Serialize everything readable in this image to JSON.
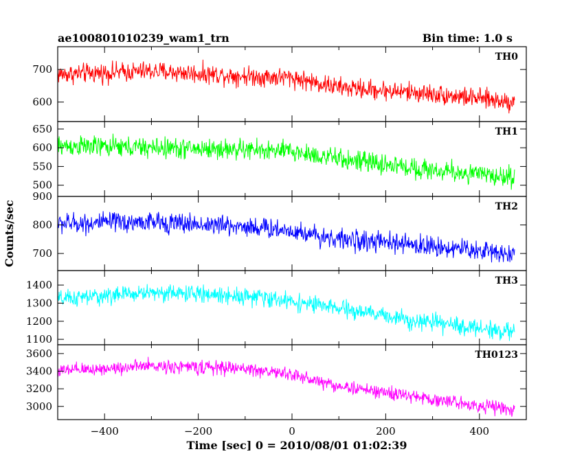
{
  "header": {
    "left": "ae100801010239_wam1_trn",
    "right": "Bin time: 1.0 s"
  },
  "chart_data": {
    "type": "line",
    "title": "ae100801010239_wam1_trn",
    "bin_time": "Bin time: 1.0 s",
    "xlabel": "Time [sec] 0 = 2010/08/01 01:02:39",
    "ylabel": "Counts/sec",
    "xlim": [
      -500,
      500
    ],
    "x_ticks": [
      -400,
      -200,
      0,
      200,
      400
    ],
    "x_tick_labels": [
      "−400",
      "−200",
      "0",
      "200",
      "400"
    ],
    "grid": false,
    "series": [
      {
        "name": "TH0",
        "color": "#ff0000",
        "ylim": [
          540,
          770
        ],
        "y_ticks": [
          600,
          700
        ],
        "y_tick_labels": [
          "600",
          "700"
        ],
        "x_range": [
          -500,
          475
        ],
        "trend": [
          [
            -500,
            685
          ],
          [
            -300,
            695
          ],
          [
            -100,
            680
          ],
          [
            0,
            675
          ],
          [
            100,
            645
          ],
          [
            300,
            625
          ],
          [
            475,
            600
          ]
        ],
        "noise_amplitude": 35
      },
      {
        "name": "TH1",
        "color": "#00ff00",
        "ylim": [
          470,
          670
        ],
        "y_ticks": [
          500,
          550,
          600,
          650
        ],
        "y_tick_labels": [
          "500",
          "550",
          "600",
          "650"
        ],
        "x_range": [
          -500,
          475
        ],
        "trend": [
          [
            -500,
            605
          ],
          [
            -300,
            600
          ],
          [
            -100,
            595
          ],
          [
            0,
            590
          ],
          [
            100,
            570
          ],
          [
            300,
            540
          ],
          [
            475,
            520
          ]
        ],
        "noise_amplitude": 32
      },
      {
        "name": "TH2",
        "color": "#0000ff",
        "ylim": [
          640,
          900
        ],
        "y_ticks": [
          700,
          800,
          900
        ],
        "y_tick_labels": [
          "700",
          "800",
          "900"
        ],
        "x_range": [
          -500,
          475
        ],
        "trend": [
          [
            -500,
            805
          ],
          [
            -300,
            810
          ],
          [
            -100,
            795
          ],
          [
            0,
            780
          ],
          [
            100,
            750
          ],
          [
            300,
            725
          ],
          [
            475,
            700
          ]
        ],
        "noise_amplitude": 42
      },
      {
        "name": "TH3",
        "color": "#00ffff",
        "ylim": [
          1070,
          1480
        ],
        "y_ticks": [
          1100,
          1200,
          1300,
          1400
        ],
        "y_tick_labels": [
          "1100",
          "1200",
          "1300",
          "1400"
        ],
        "x_range": [
          -500,
          475
        ],
        "trend": [
          [
            -500,
            1320
          ],
          [
            -300,
            1360
          ],
          [
            -100,
            1340
          ],
          [
            0,
            1310
          ],
          [
            100,
            1270
          ],
          [
            300,
            1190
          ],
          [
            475,
            1140
          ]
        ],
        "noise_amplitude": 55
      },
      {
        "name": "TH0123",
        "color": "#ff00ff",
        "ylim": [
          2850,
          3700
        ],
        "y_ticks": [
          3000,
          3200,
          3400,
          3600
        ],
        "y_tick_labels": [
          "3000",
          "3200",
          "3400",
          "3600"
        ],
        "x_range": [
          -500,
          475
        ],
        "trend": [
          [
            -500,
            3400
          ],
          [
            -300,
            3460
          ],
          [
            -100,
            3430
          ],
          [
            0,
            3360
          ],
          [
            100,
            3230
          ],
          [
            300,
            3080
          ],
          [
            475,
            2960
          ]
        ],
        "noise_amplitude": 90
      }
    ]
  }
}
